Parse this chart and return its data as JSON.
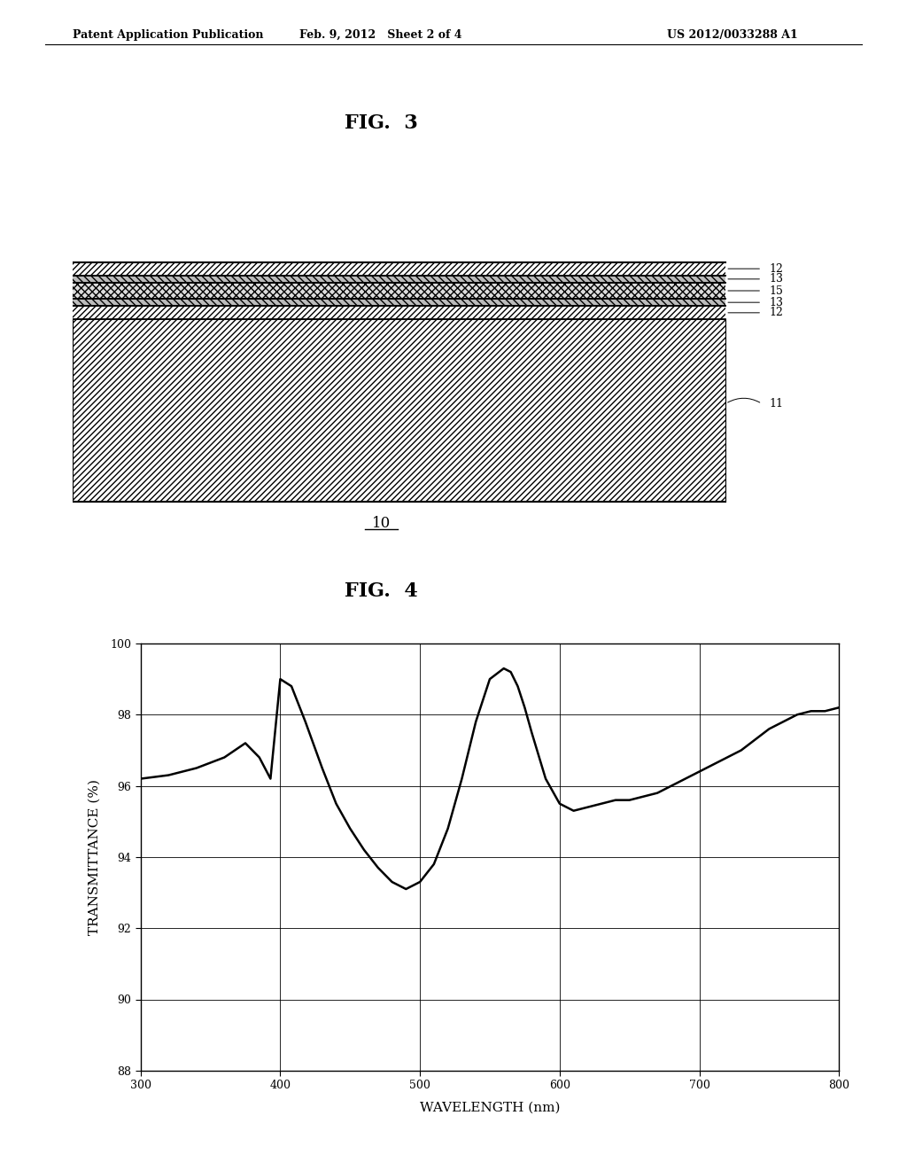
{
  "header_left": "Patent Application Publication",
  "header_mid": "Feb. 9, 2012   Sheet 2 of 4",
  "header_right": "US 2012/0033288 A1",
  "fig3_title": "FIG.  3",
  "fig4_title": "FIG.  4",
  "label_10": "10",
  "label_11": "11",
  "label_12": "12",
  "label_13": "13",
  "label_15": "15",
  "xlabel": "WAVELENGTH (nm)",
  "ylabel": "TRANSMITTANCE (%)",
  "xlim": [
    300,
    800
  ],
  "ylim": [
    88,
    100
  ],
  "xticks": [
    300,
    400,
    500,
    600,
    700,
    800
  ],
  "yticks": [
    88,
    90,
    92,
    94,
    96,
    98,
    100
  ],
  "bg_color": "#ffffff",
  "line_color": "#000000",
  "wavelengths": [
    300,
    320,
    340,
    360,
    375,
    385,
    393,
    400,
    408,
    418,
    430,
    440,
    450,
    460,
    470,
    480,
    490,
    500,
    510,
    520,
    530,
    540,
    550,
    560,
    565,
    570,
    575,
    580,
    590,
    600,
    610,
    620,
    630,
    640,
    650,
    660,
    670,
    680,
    690,
    700,
    710,
    720,
    730,
    740,
    750,
    760,
    770,
    780,
    790,
    800
  ],
  "transmittance": [
    96.2,
    96.3,
    96.5,
    96.8,
    97.2,
    96.8,
    96.2,
    99.0,
    98.8,
    97.8,
    96.5,
    95.5,
    94.8,
    94.2,
    93.7,
    93.3,
    93.1,
    93.3,
    93.8,
    94.8,
    96.2,
    97.8,
    99.0,
    99.3,
    99.2,
    98.8,
    98.2,
    97.5,
    96.2,
    95.5,
    95.3,
    95.4,
    95.5,
    95.6,
    95.6,
    95.7,
    95.8,
    96.0,
    96.2,
    96.4,
    96.6,
    96.8,
    97.0,
    97.3,
    97.6,
    97.8,
    98.0,
    98.1,
    98.1,
    98.2
  ]
}
